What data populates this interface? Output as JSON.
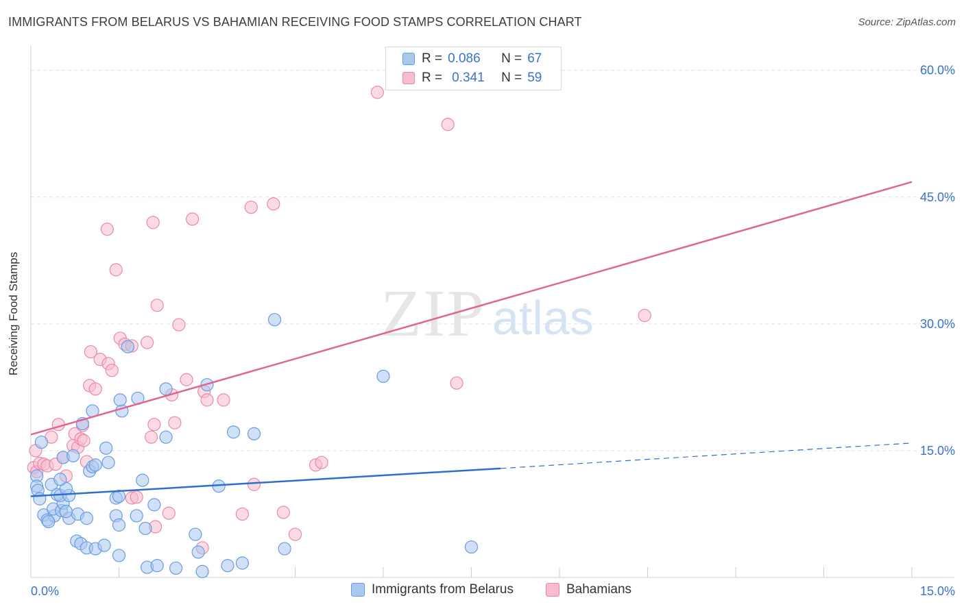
{
  "title": "IMMIGRANTS FROM BELARUS VS BAHAMIAN RECEIVING FOOD STAMPS CORRELATION CHART",
  "source": "Source: ZipAtlas.com",
  "watermark": {
    "zip": "ZIP",
    "atlas": "atlas"
  },
  "legend": {
    "series1": {
      "r_label": "R =",
      "r_value": "0.086",
      "n_label": "N =",
      "n_value": "67"
    },
    "series2": {
      "r_label": "R =",
      "r_value": "0.341",
      "n_label": "N =",
      "n_value": "59"
    }
  },
  "colors": {
    "blue_fill": "#a9c8f0",
    "blue_stroke": "#6a9be0",
    "blue_line": "#2f6fcc",
    "pink_fill": "#f7bccd",
    "pink_stroke": "#e88aa6",
    "pink_line": "#e0668f",
    "tick_text": "#3a72c8",
    "grid": "#e0e0e0"
  },
  "chart_data": {
    "type": "scatter",
    "xlabel": "",
    "ylabel": "Receiving Food Stamps",
    "xlim": [
      0,
      15
    ],
    "ylim": [
      0,
      62
    ],
    "x_tick_labels": [
      {
        "v": 0,
        "t": "0.0%"
      },
      {
        "v": 15,
        "t": "15.0%"
      }
    ],
    "y_tick_labels": [
      {
        "v": 15,
        "t": "15.0%"
      },
      {
        "v": 30,
        "t": "30.0%"
      },
      {
        "v": 45,
        "t": "45.0%"
      },
      {
        "v": 60,
        "t": "60.0%"
      }
    ],
    "grid": true,
    "series": [
      {
        "name": "Immigrants from Belarus",
        "color": "blue",
        "trend": {
          "x": [
            0,
            8.0
          ],
          "y": [
            9.6,
            12.9
          ],
          "dashed_to": [
            15,
            15.9
          ]
        },
        "points": [
          [
            0.18,
            16.0
          ],
          [
            0.1,
            12.0
          ],
          [
            0.1,
            10.8
          ],
          [
            0.12,
            10.3
          ],
          [
            0.15,
            9.3
          ],
          [
            0.35,
            11.0
          ],
          [
            0.22,
            7.4
          ],
          [
            0.28,
            6.8
          ],
          [
            0.4,
            7.3
          ],
          [
            0.38,
            8.1
          ],
          [
            0.52,
            7.9
          ],
          [
            0.55,
            8.8
          ],
          [
            0.45,
            9.8
          ],
          [
            0.5,
            9.7
          ],
          [
            0.65,
            9.7
          ],
          [
            0.6,
            10.5
          ],
          [
            0.5,
            11.6
          ],
          [
            0.55,
            14.2
          ],
          [
            0.72,
            14.4
          ],
          [
            0.88,
            18.2
          ],
          [
            1.05,
            19.7
          ],
          [
            1.55,
            19.7
          ],
          [
            1.52,
            21.0
          ],
          [
            1.82,
            21.2
          ],
          [
            1.65,
            27.3
          ],
          [
            2.3,
            22.3
          ],
          [
            3.0,
            22.8
          ],
          [
            1.28,
            15.3
          ],
          [
            1.32,
            13.6
          ],
          [
            1.0,
            12.6
          ],
          [
            1.05,
            13.1
          ],
          [
            1.1,
            13.3
          ],
          [
            1.45,
            9.4
          ],
          [
            1.5,
            9.6
          ],
          [
            1.9,
            11.5
          ],
          [
            2.1,
            8.6
          ],
          [
            1.45,
            7.3
          ],
          [
            1.8,
            7.3
          ],
          [
            1.5,
            6.2
          ],
          [
            1.95,
            5.8
          ],
          [
            0.65,
            7.0
          ],
          [
            0.8,
            7.5
          ],
          [
            0.95,
            7.0
          ],
          [
            0.78,
            4.3
          ],
          [
            0.85,
            4.0
          ],
          [
            0.95,
            3.5
          ],
          [
            1.1,
            3.4
          ],
          [
            1.25,
            3.8
          ],
          [
            1.5,
            2.6
          ],
          [
            1.98,
            1.2
          ],
          [
            2.15,
            1.4
          ],
          [
            2.47,
            1.1
          ],
          [
            2.92,
            0.7
          ],
          [
            3.35,
            1.4
          ],
          [
            3.6,
            1.7
          ],
          [
            2.8,
            5.1
          ],
          [
            2.85,
            3.0
          ],
          [
            2.3,
            16.6
          ],
          [
            3.2,
            10.8
          ],
          [
            3.45,
            17.2
          ],
          [
            3.8,
            17.0
          ],
          [
            4.15,
            30.5
          ],
          [
            4.32,
            3.4
          ],
          [
            6.0,
            23.8
          ],
          [
            7.5,
            3.6
          ],
          [
            0.3,
            6.6
          ],
          [
            0.6,
            7.8
          ]
        ]
      },
      {
        "name": "Bahamians",
        "color": "pink",
        "trend": {
          "x": [
            0,
            15
          ],
          "y": [
            16.9,
            46.8
          ]
        },
        "points": [
          [
            0.08,
            15.0
          ],
          [
            0.05,
            13.0
          ],
          [
            0.1,
            12.5
          ],
          [
            0.15,
            13.5
          ],
          [
            0.22,
            13.4
          ],
          [
            0.28,
            13.2
          ],
          [
            0.35,
            16.6
          ],
          [
            0.42,
            13.4
          ],
          [
            0.47,
            18.1
          ],
          [
            0.55,
            14.2
          ],
          [
            0.6,
            12.0
          ],
          [
            0.72,
            15.6
          ],
          [
            0.75,
            17.0
          ],
          [
            0.8,
            15.4
          ],
          [
            0.85,
            16.4
          ],
          [
            0.88,
            18.0
          ],
          [
            0.9,
            16.2
          ],
          [
            0.95,
            13.7
          ],
          [
            1.0,
            22.7
          ],
          [
            1.1,
            22.3
          ],
          [
            1.02,
            26.7
          ],
          [
            1.18,
            25.8
          ],
          [
            1.32,
            25.3
          ],
          [
            1.38,
            24.5
          ],
          [
            1.3,
            41.2
          ],
          [
            1.45,
            36.4
          ],
          [
            1.52,
            28.3
          ],
          [
            1.6,
            27.6
          ],
          [
            1.72,
            27.4
          ],
          [
            1.72,
            9.4
          ],
          [
            1.8,
            9.5
          ],
          [
            1.98,
            27.8
          ],
          [
            2.1,
            18.1
          ],
          [
            2.05,
            16.6
          ],
          [
            2.08,
            42.0
          ],
          [
            2.12,
            6.0
          ],
          [
            2.15,
            32.2
          ],
          [
            2.35,
            7.6
          ],
          [
            2.4,
            21.6
          ],
          [
            2.45,
            18.3
          ],
          [
            2.52,
            29.9
          ],
          [
            2.65,
            23.4
          ],
          [
            2.75,
            42.4
          ],
          [
            2.92,
            3.5
          ],
          [
            2.95,
            22.0
          ],
          [
            3.0,
            21.0
          ],
          [
            3.28,
            21.0
          ],
          [
            3.6,
            7.5
          ],
          [
            3.75,
            43.8
          ],
          [
            3.8,
            11.0
          ],
          [
            4.13,
            44.2
          ],
          [
            4.3,
            7.7
          ],
          [
            4.5,
            5.1
          ],
          [
            4.85,
            13.3
          ],
          [
            4.95,
            13.6
          ],
          [
            5.9,
            57.4
          ],
          [
            7.1,
            53.6
          ],
          [
            7.25,
            23.0
          ],
          [
            10.45,
            31.0
          ]
        ]
      }
    ]
  },
  "bottom_legend": {
    "series1": "Immigrants from Belarus",
    "series2": "Bahamians"
  }
}
